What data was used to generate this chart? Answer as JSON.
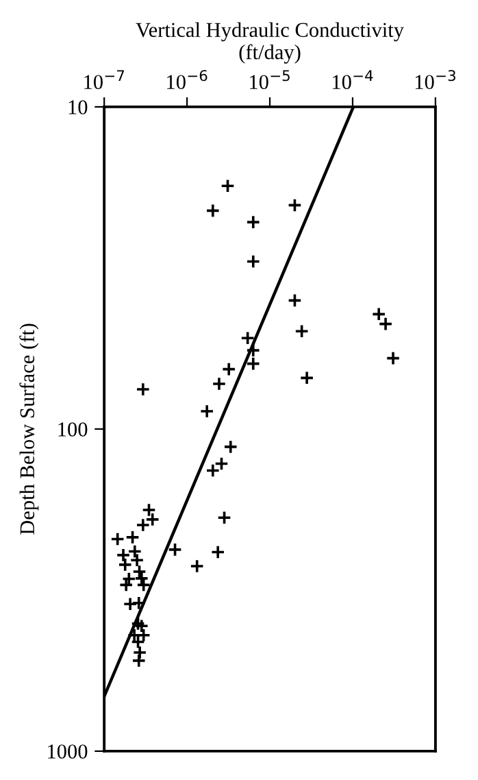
{
  "chart_data": {
    "type": "scatter",
    "xlabel": "Vertical Hydraulic Conductivity\n(ft/day)",
    "ylabel": "Depth Below Surface (ft)",
    "log": "xy",
    "marker": "cross",
    "grid": false,
    "xlim": [
      1e-07,
      0.001
    ],
    "xticks": [
      {
        "value": 1e-07,
        "label": "10$^{−7}$"
      },
      {
        "value": 1e-06,
        "label": "10$^{−6}$"
      },
      {
        "value": 1e-05,
        "label": "10$^{−5}$"
      },
      {
        "value": 0.0001,
        "label": "10$^{−4}$"
      },
      {
        "value": 0.001,
        "label": "10$^{−3}$"
      }
    ],
    "ylim": [
      1000,
      10
    ],
    "yticks": [
      10,
      100,
      1000
    ],
    "series": [
      {
        "color": "#000000",
        "x": [
          3.1e-06,
          2.05e-06,
          2e-05,
          6.3e-06,
          6.3e-06,
          2e-05,
          0.000207,
          0.00025,
          2.43e-05,
          5.4e-06,
          6.3e-06,
          6.3e-06,
          0.000308,
          3.2e-06,
          2.8e-05,
          2.44e-06,
          2.94e-07,
          1.74e-06,
          3.36e-06,
          2.61e-06,
          2.05e-06,
          3.47e-07,
          3.83e-07,
          2.94e-07,
          2.82e-06,
          1.45e-07,
          2.2e-07,
          7.16e-07,
          2.36e-06,
          1.32e-06,
          1.7e-07,
          2.34e-07,
          2.49e-07,
          1.79e-07,
          2.66e-07,
          2.83e-07,
          1.99e-07,
          1.84e-07,
          2.99e-07,
          2.06e-07,
          2.62e-07,
          2.56e-07,
          2.83e-07,
          2.31e-07,
          2.99e-07,
          2.56e-07,
          2.69e-07,
          2.62e-07
        ],
        "values": [
          17.6,
          21.0,
          20.2,
          22.8,
          30.2,
          39.9,
          44.0,
          47.2,
          49.7,
          52.2,
          57.0,
          62.7,
          60.3,
          65.2,
          69.4,
          72.4,
          75.3,
          88.1,
          113.6,
          128.1,
          134.6,
          178.3,
          190.9,
          198.6,
          188.4,
          219.6,
          216.8,
          236.8,
          241,
          266.5,
          246.3,
          239.9,
          255.4,
          263.8,
          277.1,
          290.9,
          291.8,
          304.8,
          304.8,
          349.3,
          346.9,
          402,
          408.7,
          436.5,
          436.5,
          458,
          494,
          523.8
        ]
      },
      {
        "type": "line",
        "marker": "none",
        "color": "#000000",
        "x": [
          1e-07,
          0.000102
        ],
        "values": [
          676,
          10
        ]
      }
    ]
  }
}
